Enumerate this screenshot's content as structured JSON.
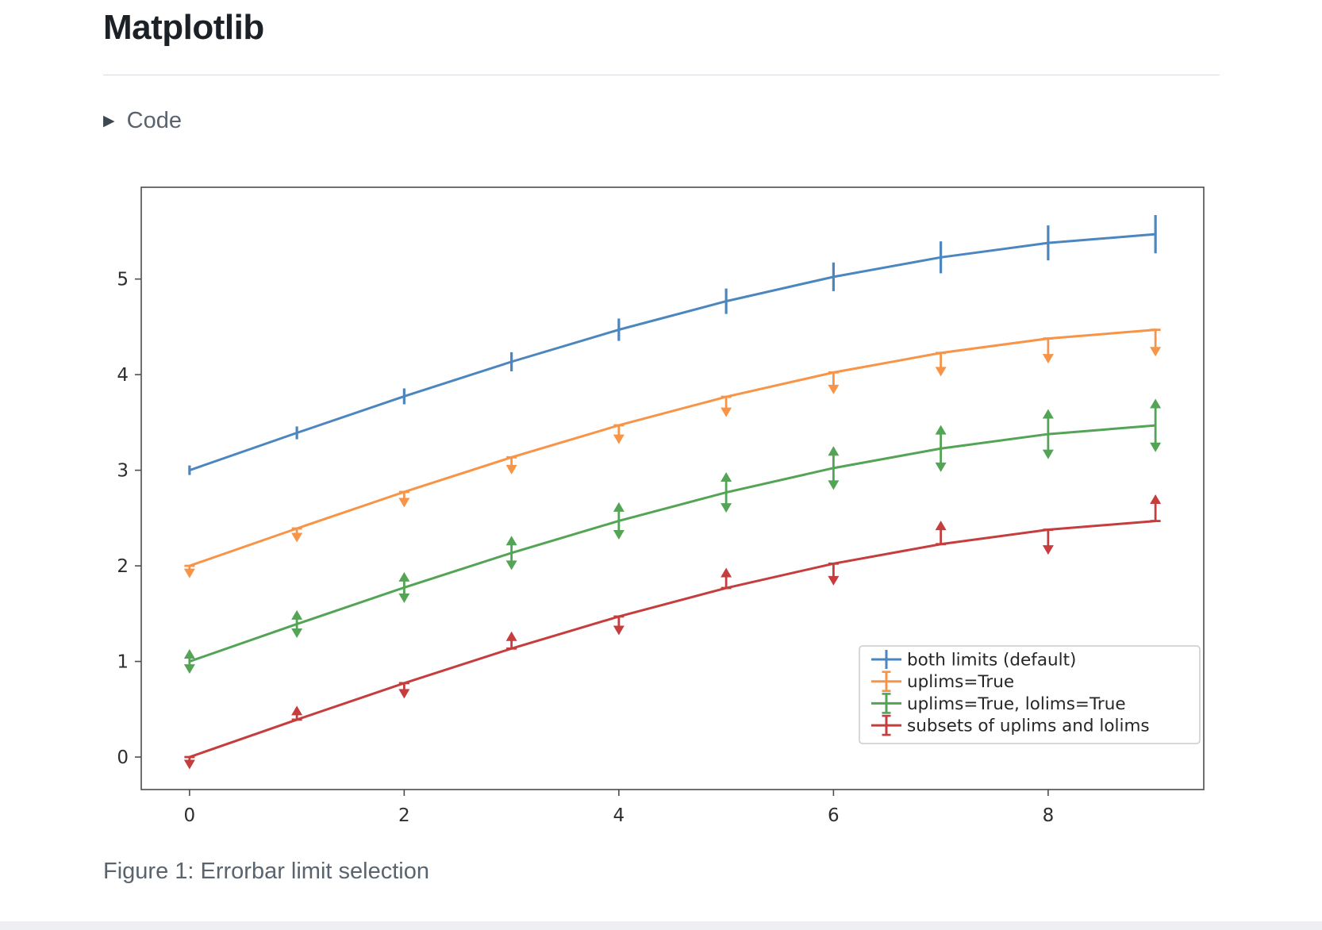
{
  "page": {
    "title": "Matplotlib",
    "code_toggle_label": "Code",
    "caption": "Figure 1: Errorbar limit selection"
  },
  "colors": {
    "axis": "#4d4d4d",
    "tick_label": "#2e2e2e",
    "legend_border": "#cccccc",
    "caption_text": "#5a646e",
    "muted_text": "#59636e",
    "heading_text": "#1c2128"
  },
  "chart_data": {
    "type": "line",
    "title": "",
    "xlabel": "",
    "ylabel": "",
    "x": [
      0,
      1,
      2,
      3,
      4,
      5,
      6,
      7,
      8,
      9
    ],
    "xticks": [
      0,
      2,
      4,
      6,
      8
    ],
    "yticks": [
      0,
      1,
      2,
      3,
      4,
      5
    ],
    "xlim": [
      -0.45,
      9.45
    ],
    "ylim": [
      -0.34,
      5.96
    ],
    "grid": false,
    "legend": {
      "position": "lower right"
    },
    "series": [
      {
        "name": "both limits (default)",
        "color": "#4c86bf",
        "limits": "both",
        "values": [
          3.0,
          3.391,
          3.773,
          4.135,
          4.47,
          4.768,
          5.023,
          5.227,
          5.378,
          5.469
        ],
        "yerr": [
          0.05,
          0.067,
          0.083,
          0.1,
          0.117,
          0.133,
          0.15,
          0.167,
          0.183,
          0.2
        ]
      },
      {
        "name": "uplims=True",
        "color": "#f79447",
        "limits": "uplims",
        "values": [
          2.0,
          2.391,
          2.773,
          3.135,
          3.47,
          3.768,
          4.023,
          4.227,
          4.378,
          4.469
        ],
        "yerr": [
          0.05,
          0.067,
          0.083,
          0.1,
          0.117,
          0.133,
          0.15,
          0.167,
          0.183,
          0.2
        ]
      },
      {
        "name": "uplims=True, lolims=True",
        "color": "#53a455",
        "limits": "uplims+lolims",
        "values": [
          1.0,
          1.391,
          1.773,
          2.135,
          2.47,
          2.768,
          3.023,
          3.227,
          3.378,
          3.469
        ],
        "yerr": [
          0.05,
          0.067,
          0.083,
          0.1,
          0.117,
          0.133,
          0.15,
          0.167,
          0.183,
          0.2
        ]
      },
      {
        "name": "subsets of uplims and lolims",
        "color": "#c53d3d",
        "limits": "alternating",
        "uplims": [
          true,
          false,
          true,
          false,
          true,
          false,
          true,
          false,
          true,
          false
        ],
        "lolims": [
          false,
          true,
          false,
          true,
          false,
          true,
          false,
          true,
          false,
          true
        ],
        "values": [
          0.0,
          0.391,
          0.773,
          1.135,
          1.47,
          1.768,
          2.023,
          2.227,
          2.378,
          2.469
        ],
        "yerr": [
          0.05,
          0.067,
          0.083,
          0.1,
          0.117,
          0.133,
          0.15,
          0.167,
          0.183,
          0.2
        ]
      }
    ]
  }
}
